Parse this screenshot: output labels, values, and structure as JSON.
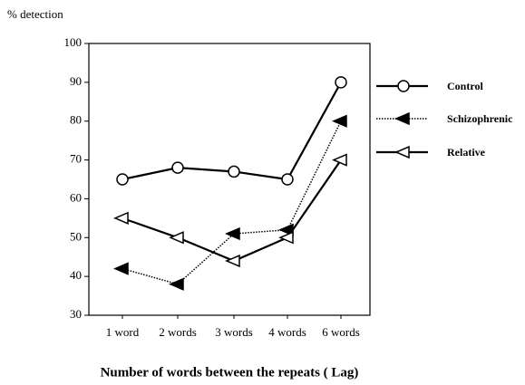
{
  "chart_data": {
    "type": "line",
    "y_label": "% detection",
    "x_label": "Number of words between the repeats ( Lag)",
    "categories": [
      "1 word",
      "2 words",
      "3 words",
      "4 words",
      "6 words"
    ],
    "series": [
      {
        "name": "Control",
        "color": "#000000",
        "marker": "circle",
        "line_style": "solid",
        "values": [
          65,
          68,
          67,
          65,
          90
        ]
      },
      {
        "name": "Schizophrenic",
        "color": "#000000",
        "marker": "triangle-filled",
        "line_style": "dotted",
        "values": [
          42,
          38,
          51,
          52,
          80
        ]
      },
      {
        "name": "Relative",
        "color": "#000000",
        "marker": "triangle-open",
        "line_style": "solid",
        "values": [
          55,
          50,
          44,
          50,
          70
        ]
      }
    ],
    "ylim": [
      30,
      100
    ],
    "yticks": [
      30,
      40,
      50,
      60,
      70,
      80,
      90,
      100
    ],
    "legend": "right"
  }
}
